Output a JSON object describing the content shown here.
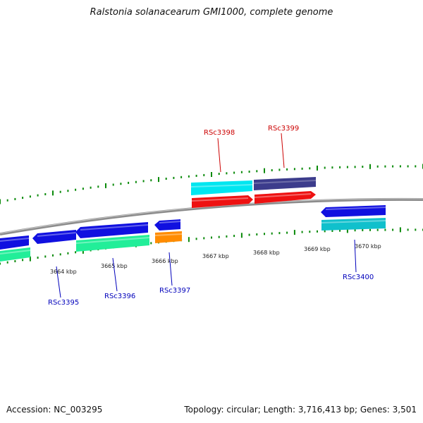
{
  "title": "Ralstonia solanacearum GMI1000, complete genome",
  "footer": {
    "accession": "Accession: NC_003295",
    "summary": "Topology: circular; Length: 3,716,413 bp; Genes: 3,501"
  },
  "scale": {
    "tick_labels": [
      "3664 kbp",
      "3665 kbp",
      "3666 kbp",
      "3667 kbp",
      "3668 kbp",
      "3669 kbp",
      "3670 kbp"
    ]
  },
  "gene_labels": {
    "rsc3395": "RSc3395",
    "rsc3396": "RSc3396",
    "rsc3397": "RSc3397",
    "rsc3398": "RSc3398",
    "rsc3399": "RSc3399",
    "rsc3400": "RSc3400"
  },
  "colors": {
    "backbone": "#8c8c8c",
    "ticks": "#0a8a0a",
    "forward_label": "#cc0000",
    "reverse_label": "#0000bb",
    "cds_blue": "#1010e0",
    "cds_red": "#ee1111",
    "cds_cyan": "#00e6f0",
    "cds_navy": "#3c3c8c",
    "cds_green": "#22ee99",
    "cds_orange": "#ff8c00",
    "cds_teal": "#10c0cc"
  }
}
